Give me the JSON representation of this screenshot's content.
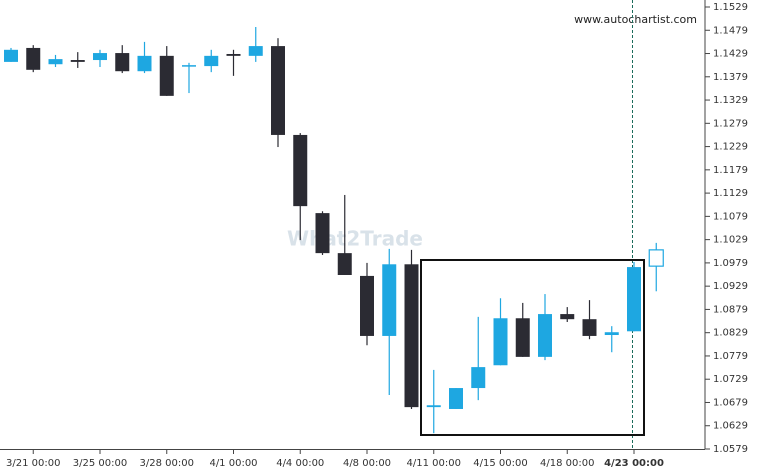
{
  "chart_data": {
    "type": "candlestick",
    "watermark": "www.autochartist.com",
    "logo": "What2Trade",
    "categories": [
      null,
      "3/21 00:00",
      null,
      null,
      "3/25 00:00",
      null,
      null,
      "3/28 00:00",
      null,
      null,
      "4/1 00:00",
      null,
      null,
      "4/4 00:00",
      null,
      null,
      "4/8 00:00",
      null,
      null,
      "4/11 00:00",
      null,
      null,
      "4/15 00:00",
      null,
      null,
      "4/18 00:00",
      null,
      null,
      "4/23 00:00",
      null
    ],
    "open": [
      1.1411,
      1.1441,
      1.1406,
      1.1415,
      1.1415,
      1.143,
      1.1391,
      1.1424,
      1.1402,
      1.1402,
      1.1428,
      1.1424,
      1.1445,
      1.1254,
      1.1086,
      1.1,
      1.0951,
      1.0822,
      1.0976,
      1.0669,
      1.0665,
      1.071,
      1.0759,
      1.086,
      1.0777,
      1.0869,
      1.0858,
      1.0824,
      1.0832,
      1.0972
    ],
    "close": [
      1.1437,
      1.1394,
      1.1417,
      1.1411,
      1.143,
      1.1391,
      1.1424,
      1.1338,
      1.1404,
      1.1424,
      1.1424,
      1.1445,
      1.1254,
      1.1101,
      1.1,
      1.0953,
      1.0822,
      1.0976,
      1.0669,
      1.0673,
      1.071,
      1.0755,
      1.086,
      1.0777,
      1.0869,
      1.0858,
      1.0822,
      1.083,
      1.097,
      1.1007
    ],
    "high": [
      1.1441,
      1.1447,
      1.1426,
      1.1432,
      1.1437,
      1.1447,
      1.1454,
      1.1445,
      1.1409,
      1.1437,
      1.1437,
      1.1486,
      1.1462,
      1.1258,
      1.109,
      1.1125,
      1.0979,
      1.1009,
      1.1007,
      1.0749,
      1.071,
      1.0863,
      1.0903,
      1.0893,
      1.0912,
      1.0884,
      1.0899,
      1.0843,
      1.0981,
      1.1022
    ],
    "low": [
      1.1411,
      1.1389,
      1.14,
      1.1398,
      1.14,
      1.1387,
      1.1387,
      1.1338,
      1.1344,
      1.1389,
      1.1381,
      1.1411,
      1.1228,
      1.1028,
      1.0996,
      1.0953,
      1.0802,
      1.0695,
      1.0665,
      1.0613,
      1.0665,
      1.0684,
      1.0759,
      1.0777,
      1.077,
      1.0852,
      1.0815,
      1.0787,
      1.0832,
      1.0918
    ],
    "up_color": "#1ea7e1",
    "down_color": "#2b2b33",
    "ylim": [
      1.0579,
      1.1529
    ],
    "yticks": [
      1.0579,
      1.0629,
      1.0679,
      1.0729,
      1.0779,
      1.0829,
      1.0879,
      1.0929,
      1.0979,
      1.1029,
      1.1079,
      1.1129,
      1.1179,
      1.1229,
      1.1279,
      1.1329,
      1.1379,
      1.1429,
      1.1479,
      1.1529
    ]
  }
}
